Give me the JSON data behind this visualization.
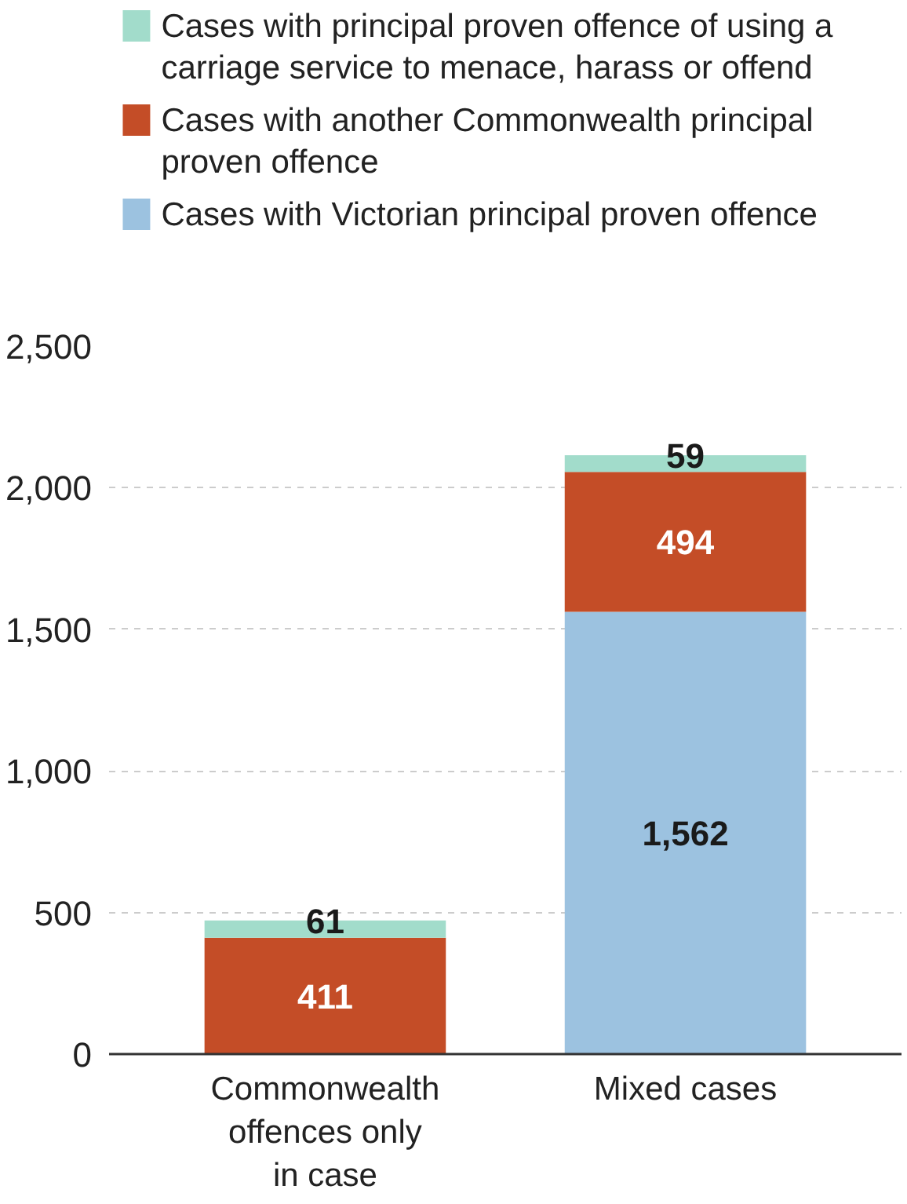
{
  "chart_data": {
    "type": "bar",
    "stacked": true,
    "categories": [
      "Commonwealth offences only in case",
      "Mixed cases"
    ],
    "series": [
      {
        "name": "Cases with Victorian principal proven offence",
        "color": "#9cc2e0",
        "values": [
          null,
          1562
        ],
        "value_labels": [
          null,
          "1,562"
        ]
      },
      {
        "name": "Cases with another Commonwealth principal proven offence",
        "color": "#c44d27",
        "values": [
          411,
          494
        ],
        "value_labels": [
          "411",
          "494"
        ]
      },
      {
        "name": "Cases with principal proven offence of using a carriage service to menace, harass or offend",
        "color": "#a2dccb",
        "values": [
          61,
          59
        ],
        "value_labels": [
          "61",
          "59"
        ]
      }
    ],
    "ylim": [
      0,
      2500
    ],
    "yticks": [
      0,
      {
        "value": 500,
        "label": "500"
      },
      {
        "value": 1000,
        "label": "1,000"
      },
      {
        "value": 1500,
        "label": "1,500"
      },
      {
        "value": 2000,
        "label": "2,000"
      },
      {
        "value": 2500,
        "label": "2,500"
      }
    ],
    "grid": "y",
    "legend": "top"
  }
}
